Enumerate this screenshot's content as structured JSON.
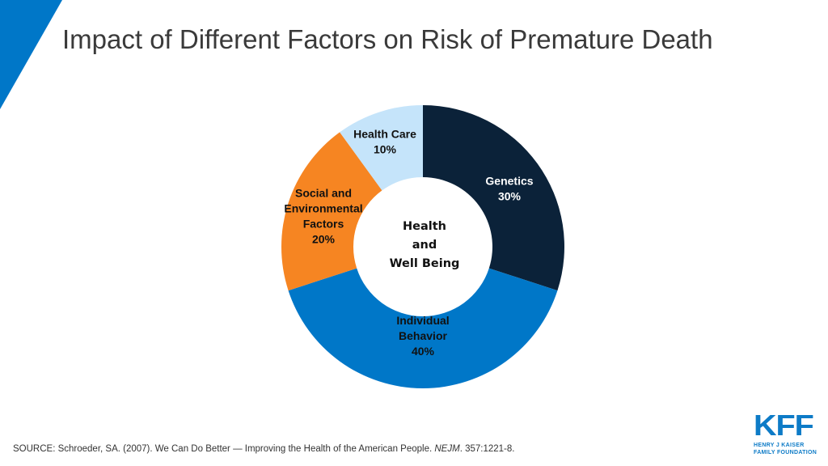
{
  "title": "Impact of Different Factors on Risk of Premature Death",
  "colors": {
    "accent": "#0077c8",
    "title": "#3a3a3a"
  },
  "chart_data": {
    "type": "pie",
    "subtype": "donut",
    "center_label": [
      "Health",
      "and",
      "Well Being"
    ],
    "slices": [
      {
        "label": [
          "Genetics"
        ],
        "value": 30,
        "value_label": "30%",
        "color": "#0b2239",
        "text_color": "#ffffff"
      },
      {
        "label": [
          "Individual",
          "Behavior"
        ],
        "value": 40,
        "value_label": "40%",
        "color": "#0077c8",
        "text_color": "#111111"
      },
      {
        "label": [
          "Social and",
          "Environmental",
          "Factors"
        ],
        "value": 20,
        "value_label": "20%",
        "color": "#f68522",
        "text_color": "#111111"
      },
      {
        "label": [
          "Health Care"
        ],
        "value": 10,
        "value_label": "10%",
        "color": "#c5e4fa",
        "text_color": "#111111"
      }
    ],
    "start": "top",
    "direction": "clockwise"
  },
  "source": {
    "prefix": "SOURCE: Schroeder, SA. (2007). We Can Do Better — Improving the Health of the American People. ",
    "journal": "NEJM",
    "suffix": ". 357:1221-8."
  },
  "logo": {
    "name": "KFF",
    "line1": "HENRY J KAISER",
    "line2": "FAMILY FOUNDATION"
  }
}
